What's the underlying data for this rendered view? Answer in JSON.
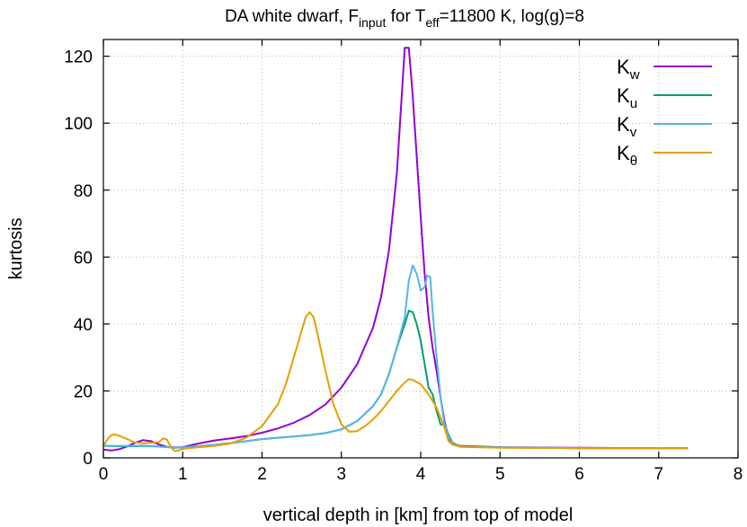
{
  "chart_data": {
    "type": "line",
    "title": {
      "prefix": "DA white dwarf, F",
      "sub1": "input",
      "middle": " for T",
      "sub2": "eff",
      "suffix": "=11800 K, log(g)=8"
    },
    "xlabel": "vertical depth in [km] from top of model",
    "ylabel": "kurtosis",
    "xlim": [
      0,
      8
    ],
    "ylim": [
      0,
      125
    ],
    "xticks": [
      0,
      1,
      2,
      3,
      4,
      5,
      6,
      7,
      8
    ],
    "yticks": [
      0,
      20,
      40,
      60,
      80,
      100,
      120
    ],
    "grid": true,
    "legend_position": "top-right",
    "series": [
      {
        "name": "K",
        "name_sub": "w",
        "color": "#9400D3",
        "points": [
          [
            0,
            2.5
          ],
          [
            0.1,
            2.2
          ],
          [
            0.2,
            2.6
          ],
          [
            0.3,
            3.4
          ],
          [
            0.4,
            4.5
          ],
          [
            0.5,
            5.3
          ],
          [
            0.6,
            5.0
          ],
          [
            0.7,
            4.0
          ],
          [
            0.8,
            3.3
          ],
          [
            0.9,
            3.1
          ],
          [
            1.0,
            3.2
          ],
          [
            1.2,
            4.3
          ],
          [
            1.4,
            5.2
          ],
          [
            1.6,
            5.8
          ],
          [
            1.8,
            6.5
          ],
          [
            2.0,
            7.5
          ],
          [
            2.2,
            8.8
          ],
          [
            2.4,
            10.5
          ],
          [
            2.6,
            12.8
          ],
          [
            2.8,
            16
          ],
          [
            3.0,
            21
          ],
          [
            3.2,
            28
          ],
          [
            3.4,
            39
          ],
          [
            3.5,
            48
          ],
          [
            3.6,
            62
          ],
          [
            3.7,
            85
          ],
          [
            3.75,
            104
          ],
          [
            3.8,
            122.5
          ],
          [
            3.85,
            122.5
          ],
          [
            3.9,
            108
          ],
          [
            3.95,
            90
          ],
          [
            4.0,
            72
          ],
          [
            4.05,
            55
          ],
          [
            4.1,
            42
          ],
          [
            4.15,
            33
          ],
          [
            4.2,
            26
          ],
          [
            4.25,
            18
          ],
          [
            4.3,
            11
          ],
          [
            4.35,
            6
          ],
          [
            4.4,
            4
          ],
          [
            4.5,
            3.6
          ],
          [
            5,
            3.2
          ],
          [
            6,
            3.0
          ],
          [
            7,
            2.9
          ],
          [
            7.37,
            2.9
          ]
        ]
      },
      {
        "name": "K",
        "name_sub": "u",
        "color": "#009E73",
        "points": [
          [
            0,
            3.6
          ],
          [
            0.2,
            3.5
          ],
          [
            0.4,
            3.5
          ],
          [
            0.5,
            3.6
          ],
          [
            0.6,
            3.5
          ],
          [
            0.8,
            3.3
          ],
          [
            0.9,
            3.0
          ],
          [
            1.0,
            3.1
          ],
          [
            1.2,
            3.5
          ],
          [
            1.4,
            3.9
          ],
          [
            1.6,
            4.4
          ],
          [
            1.8,
            5.0
          ],
          [
            2.0,
            5.6
          ],
          [
            2.2,
            6.0
          ],
          [
            2.4,
            6.4
          ],
          [
            2.6,
            6.8
          ],
          [
            2.8,
            7.4
          ],
          [
            3.0,
            8.5
          ],
          [
            3.2,
            11
          ],
          [
            3.4,
            15.5
          ],
          [
            3.5,
            19
          ],
          [
            3.6,
            25
          ],
          [
            3.7,
            33
          ],
          [
            3.8,
            40
          ],
          [
            3.85,
            44
          ],
          [
            3.9,
            43.5
          ],
          [
            3.95,
            40
          ],
          [
            4.0,
            35
          ],
          [
            4.05,
            28
          ],
          [
            4.1,
            21
          ],
          [
            4.15,
            19
          ],
          [
            4.2,
            14
          ],
          [
            4.25,
            10
          ],
          [
            4.3,
            10
          ],
          [
            4.35,
            7
          ],
          [
            4.4,
            4.5
          ],
          [
            4.5,
            3.4
          ],
          [
            5,
            3.1
          ],
          [
            6,
            2.9
          ],
          [
            7,
            2.9
          ],
          [
            7.37,
            2.9
          ]
        ]
      },
      {
        "name": "K",
        "name_sub": "v",
        "color": "#56B4E9",
        "points": [
          [
            0,
            3.6
          ],
          [
            0.2,
            3.6
          ],
          [
            0.4,
            3.6
          ],
          [
            0.5,
            3.7
          ],
          [
            0.6,
            3.5
          ],
          [
            0.8,
            3.2
          ],
          [
            0.9,
            3.0
          ],
          [
            1.0,
            3.1
          ],
          [
            1.2,
            3.5
          ],
          [
            1.4,
            3.9
          ],
          [
            1.6,
            4.4
          ],
          [
            1.8,
            5.0
          ],
          [
            2.0,
            5.6
          ],
          [
            2.2,
            6.0
          ],
          [
            2.4,
            6.4
          ],
          [
            2.6,
            6.8
          ],
          [
            2.8,
            7.4
          ],
          [
            3.0,
            8.5
          ],
          [
            3.2,
            11
          ],
          [
            3.4,
            15.5
          ],
          [
            3.5,
            19
          ],
          [
            3.6,
            25
          ],
          [
            3.7,
            33
          ],
          [
            3.8,
            42
          ],
          [
            3.85,
            53
          ],
          [
            3.9,
            57.5
          ],
          [
            3.95,
            55
          ],
          [
            4.0,
            50
          ],
          [
            4.05,
            51
          ],
          [
            4.08,
            54.5
          ],
          [
            4.12,
            54
          ],
          [
            4.15,
            44
          ],
          [
            4.2,
            30
          ],
          [
            4.25,
            18
          ],
          [
            4.3,
            10
          ],
          [
            4.35,
            6.5
          ],
          [
            4.4,
            4.2
          ],
          [
            4.5,
            3.4
          ],
          [
            5,
            3.1
          ],
          [
            6,
            2.9
          ],
          [
            7,
            2.9
          ],
          [
            7.37,
            2.9
          ]
        ]
      },
      {
        "name": "K",
        "name_sub": "θ",
        "color": "#E69F00",
        "points": [
          [
            0,
            3.5
          ],
          [
            0.05,
            5.5
          ],
          [
            0.1,
            6.8
          ],
          [
            0.15,
            7.0
          ],
          [
            0.2,
            6.6
          ],
          [
            0.3,
            5.6
          ],
          [
            0.4,
            4.6
          ],
          [
            0.5,
            4.4
          ],
          [
            0.6,
            4.5
          ],
          [
            0.7,
            4.7
          ],
          [
            0.75,
            5.8
          ],
          [
            0.8,
            5.5
          ],
          [
            0.85,
            3.3
          ],
          [
            0.9,
            2.0
          ],
          [
            0.95,
            2.2
          ],
          [
            1.0,
            2.7
          ],
          [
            1.2,
            3.2
          ],
          [
            1.4,
            3.6
          ],
          [
            1.6,
            4.3
          ],
          [
            1.8,
            6.0
          ],
          [
            2.0,
            9.5
          ],
          [
            2.2,
            16
          ],
          [
            2.3,
            22
          ],
          [
            2.4,
            30
          ],
          [
            2.5,
            38
          ],
          [
            2.55,
            42
          ],
          [
            2.6,
            43.5
          ],
          [
            2.65,
            42
          ],
          [
            2.7,
            37
          ],
          [
            2.8,
            26
          ],
          [
            2.9,
            16
          ],
          [
            3.0,
            10
          ],
          [
            3.1,
            7.8
          ],
          [
            3.2,
            8.0
          ],
          [
            3.3,
            9.5
          ],
          [
            3.4,
            11.5
          ],
          [
            3.5,
            14
          ],
          [
            3.6,
            17
          ],
          [
            3.7,
            20
          ],
          [
            3.8,
            22.5
          ],
          [
            3.85,
            23.5
          ],
          [
            3.9,
            23.3
          ],
          [
            4.0,
            22
          ],
          [
            4.1,
            19
          ],
          [
            4.2,
            15
          ],
          [
            4.3,
            9
          ],
          [
            4.35,
            5
          ],
          [
            4.4,
            4
          ],
          [
            4.5,
            3.3
          ],
          [
            5,
            3.0
          ],
          [
            6,
            2.9
          ],
          [
            7,
            2.9
          ],
          [
            7.37,
            2.9
          ]
        ]
      }
    ]
  }
}
